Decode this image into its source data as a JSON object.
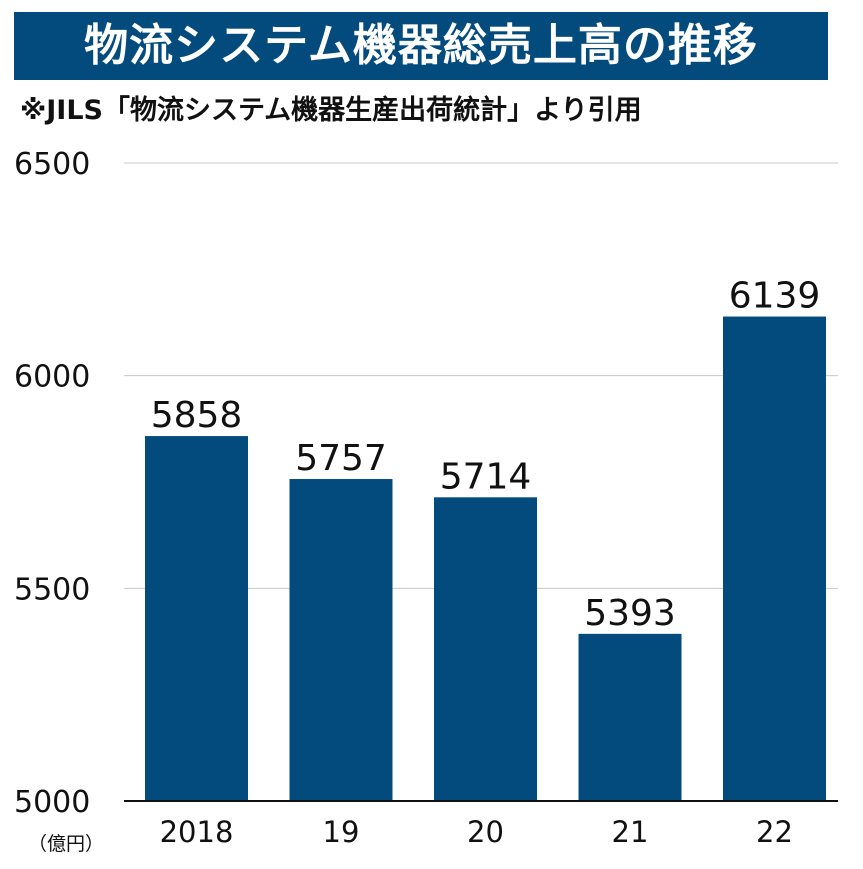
{
  "header": {
    "title": "物流システム機器総売上高の推移",
    "source": "※JILS「物流システム機器生産出荷統計」より引用"
  },
  "colors": {
    "title_bg": "#034b7d",
    "bar": "#034b7d",
    "grid": "#c8c8c8",
    "axis": "#111111"
  },
  "chart_data": {
    "type": "bar",
    "categories": [
      "2018",
      "19",
      "20",
      "21",
      "22"
    ],
    "values": [
      5858,
      5757,
      5714,
      5393,
      6139
    ],
    "ylim": [
      5000,
      6500
    ],
    "yticks": [
      5000,
      5500,
      6000,
      6500
    ],
    "y_unit": "（億円）",
    "grid": true,
    "data_labels": [
      "5858",
      "5757",
      "5714",
      "5393",
      "6139"
    ]
  }
}
